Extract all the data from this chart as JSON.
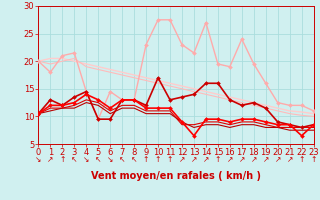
{
  "bg_color": "#d0f0f0",
  "grid_color": "#aadddd",
  "xlim": [
    0,
    23
  ],
  "ylim": [
    5,
    30
  ],
  "yticks": [
    5,
    10,
    15,
    20,
    25,
    30
  ],
  "xticks": [
    0,
    1,
    2,
    3,
    4,
    5,
    6,
    7,
    8,
    9,
    10,
    11,
    12,
    13,
    14,
    15,
    16,
    17,
    18,
    19,
    20,
    21,
    22,
    23
  ],
  "series": [
    {
      "x": [
        0,
        1,
        2,
        3,
        4,
        5,
        6,
        7,
        8,
        9,
        10,
        11,
        12,
        13,
        14,
        15,
        16,
        17,
        18,
        19,
        20,
        21,
        22,
        23
      ],
      "y": [
        20.0,
        18.0,
        21.0,
        21.5,
        14.5,
        9.5,
        14.5,
        13.0,
        13.0,
        23.0,
        27.5,
        27.5,
        23.0,
        21.5,
        27.0,
        19.5,
        19.0,
        24.0,
        19.5,
        16.0,
        12.5,
        12.0,
        12.0,
        11.0
      ],
      "color": "#ffaaaa",
      "lw": 1.0,
      "marker": "D",
      "ms": 2.0,
      "zorder": 3
    },
    {
      "x": [
        0,
        1,
        2,
        3,
        4,
        5,
        6,
        7,
        8,
        9,
        10,
        11,
        12,
        13,
        14,
        15,
        16,
        17,
        18,
        19,
        20,
        21,
        22,
        23
      ],
      "y": [
        20.0,
        20.5,
        20.5,
        20.0,
        19.5,
        19.0,
        18.5,
        18.0,
        17.5,
        17.0,
        16.5,
        16.0,
        15.5,
        15.0,
        14.5,
        14.0,
        13.5,
        13.0,
        12.5,
        12.0,
        11.5,
        11.0,
        10.8,
        10.5
      ],
      "color": "#ffcccc",
      "lw": 1.0,
      "marker": null,
      "ms": 0,
      "zorder": 2
    },
    {
      "x": [
        0,
        1,
        2,
        3,
        4,
        5,
        6,
        7,
        8,
        9,
        10,
        11,
        12,
        13,
        14,
        15,
        16,
        17,
        18,
        19,
        20,
        21,
        22,
        23
      ],
      "y": [
        20.0,
        19.5,
        20.0,
        20.5,
        19.0,
        18.5,
        18.0,
        17.5,
        17.0,
        16.5,
        16.0,
        15.5,
        15.0,
        14.5,
        14.0,
        13.5,
        13.0,
        12.5,
        12.0,
        11.5,
        11.0,
        10.5,
        10.2,
        10.0
      ],
      "color": "#ffbbbb",
      "lw": 0.8,
      "marker": null,
      "ms": 0,
      "zorder": 2
    },
    {
      "x": [
        0,
        1,
        2,
        3,
        4,
        5,
        6,
        7,
        8,
        9,
        10,
        11,
        12,
        13,
        14,
        15,
        16,
        17,
        18,
        19,
        20,
        21,
        22,
        23
      ],
      "y": [
        10.5,
        13.0,
        12.0,
        13.5,
        14.5,
        9.5,
        9.5,
        13.0,
        13.0,
        12.0,
        17.0,
        13.0,
        13.5,
        14.0,
        16.0,
        16.0,
        13.0,
        12.0,
        12.5,
        11.5,
        9.0,
        8.5,
        8.0,
        8.5
      ],
      "color": "#cc0000",
      "lw": 1.2,
      "marker": "D",
      "ms": 2.0,
      "zorder": 4
    },
    {
      "x": [
        0,
        1,
        2,
        3,
        4,
        5,
        6,
        7,
        8,
        9,
        10,
        11,
        12,
        13,
        14,
        15,
        16,
        17,
        18,
        19,
        20,
        21,
        22,
        23
      ],
      "y": [
        10.5,
        12.0,
        12.0,
        12.5,
        14.0,
        13.0,
        11.5,
        13.0,
        13.0,
        11.5,
        11.5,
        11.5,
        9.0,
        6.5,
        9.5,
        9.5,
        9.0,
        9.5,
        9.5,
        9.0,
        8.5,
        8.5,
        6.5,
        8.5
      ],
      "color": "#ff0000",
      "lw": 1.2,
      "marker": "D",
      "ms": 2.0,
      "zorder": 4
    },
    {
      "x": [
        0,
        1,
        2,
        3,
        4,
        5,
        6,
        7,
        8,
        9,
        10,
        11,
        12,
        13,
        14,
        15,
        16,
        17,
        18,
        19,
        20,
        21,
        22,
        23
      ],
      "y": [
        10.5,
        11.5,
        11.5,
        12.0,
        13.0,
        12.5,
        11.0,
        12.0,
        12.0,
        11.0,
        11.0,
        11.0,
        8.5,
        8.5,
        9.0,
        9.0,
        8.5,
        9.0,
        9.0,
        8.5,
        8.0,
        8.0,
        8.0,
        8.0
      ],
      "color": "#dd0000",
      "lw": 0.8,
      "marker": null,
      "ms": 0,
      "zorder": 3
    },
    {
      "x": [
        0,
        1,
        2,
        3,
        4,
        5,
        6,
        7,
        8,
        9,
        10,
        11,
        12,
        13,
        14,
        15,
        16,
        17,
        18,
        19,
        20,
        21,
        22,
        23
      ],
      "y": [
        10.5,
        11.0,
        11.5,
        11.5,
        12.5,
        12.0,
        10.5,
        11.5,
        11.5,
        10.5,
        10.5,
        10.5,
        9.0,
        8.0,
        8.5,
        8.5,
        8.0,
        8.5,
        8.5,
        8.0,
        8.0,
        7.5,
        7.5,
        7.5
      ],
      "color": "#bb0000",
      "lw": 0.8,
      "marker": null,
      "ms": 0,
      "zorder": 3
    }
  ],
  "arrow_symbols": [
    "↘",
    "↗",
    "↑",
    "↖",
    "↘",
    "↖",
    "↘",
    "↖",
    "↖",
    "↑",
    "↑",
    "↑",
    "↗",
    "↗",
    "↗",
    "↑",
    "↗",
    "↗",
    "↗",
    "↗",
    "↗",
    "↗",
    "↑",
    "↑"
  ],
  "xlabel": "Vent moyen/en rafales ( km/h )",
  "xlabel_color": "#cc0000",
  "xlabel_fontsize": 7,
  "tick_fontsize": 6,
  "arrow_fontsize": 5.5
}
